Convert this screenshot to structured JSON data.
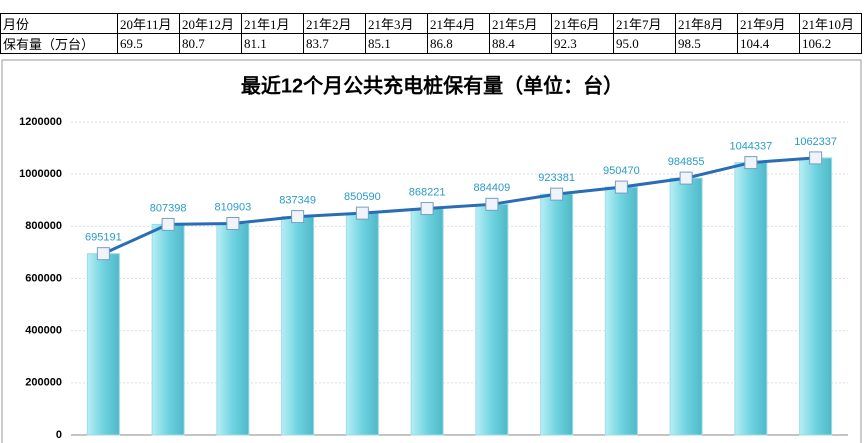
{
  "table": {
    "header": [
      "月份",
      "20年11月",
      "20年12月",
      "21年1月",
      "21年2月",
      "21年3月",
      "21年4月",
      "21年5月",
      "21年6月",
      "21年7月",
      "21年8月",
      "21年9月",
      "21年10月"
    ],
    "rows": [
      [
        "保有量（万台）",
        "69.5",
        "80.7",
        "81.1",
        "83.7",
        "85.1",
        "86.8",
        "88.4",
        "92.3",
        "95.0",
        "98.5",
        "104.4",
        "106.2"
      ]
    ]
  },
  "chart_data": {
    "type": "bar-line",
    "title": "最近12个月公共充电桩保有量（单位：台）",
    "values": [
      695191,
      807398,
      810903,
      837349,
      850590,
      868221,
      884409,
      923381,
      950470,
      984855,
      1044337,
      1062337
    ],
    "bar_color": "#6fd3e0",
    "line_color": "#2a6db5",
    "label_color": "#2a9bc8",
    "ylim": [
      0,
      1200000
    ],
    "yticks": [
      0,
      200000,
      400000,
      600000,
      800000,
      1000000,
      1200000
    ],
    "grid": true
  }
}
